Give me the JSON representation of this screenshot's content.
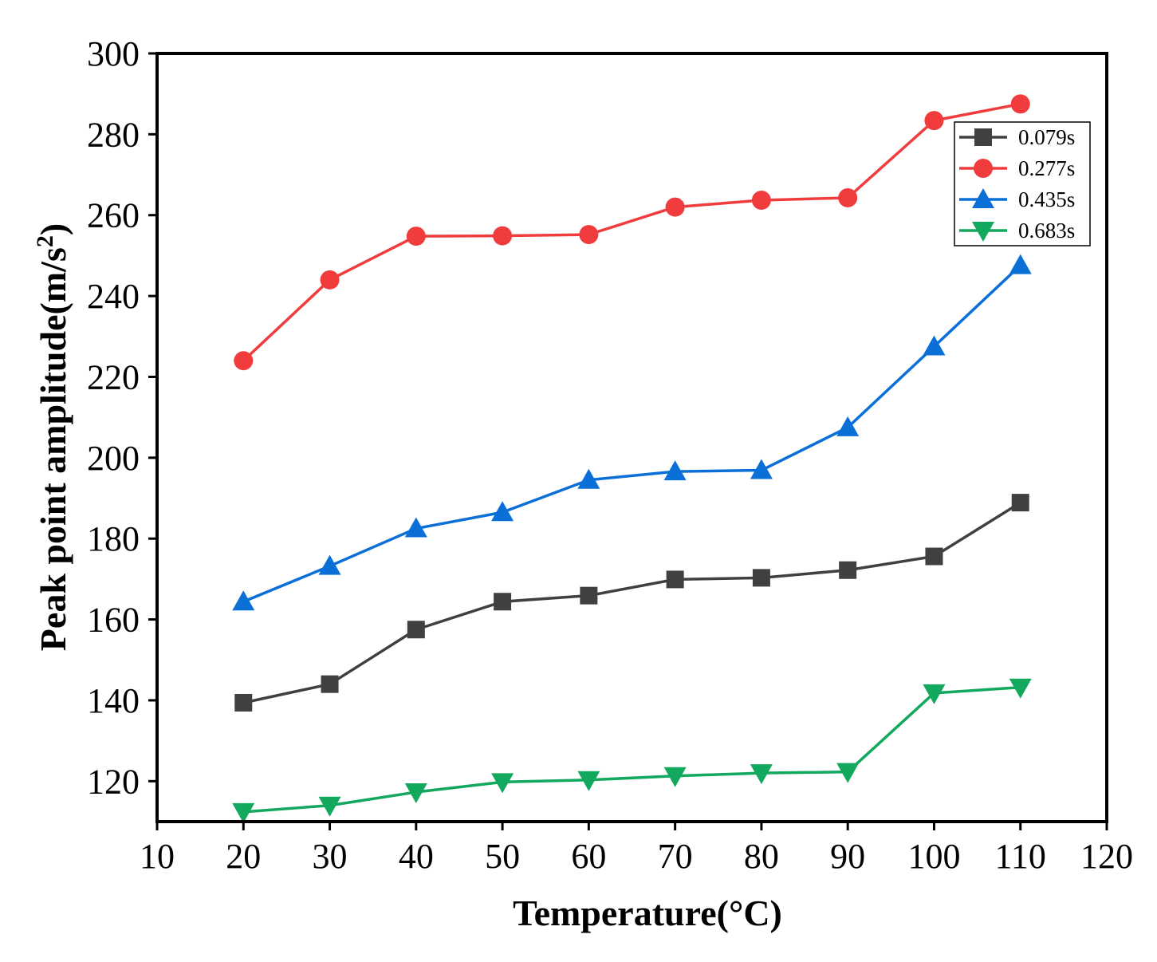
{
  "chart_data": {
    "type": "line",
    "title": "",
    "xlabel": "Temperature(°C)",
    "ylabel": "Peak point amplitude(m/s²)",
    "ylabel_main": "Peak point amplitude(m/s",
    "ylabel_sup": "2",
    "ylabel_end": ")",
    "xlim": [
      10,
      120
    ],
    "ylim": [
      110,
      300
    ],
    "x_ticks": [
      10,
      20,
      30,
      40,
      50,
      60,
      70,
      80,
      90,
      100,
      110,
      120
    ],
    "y_ticks": [
      120,
      140,
      160,
      180,
      200,
      220,
      240,
      260,
      280,
      300
    ],
    "x": [
      20,
      30,
      40,
      50,
      60,
      70,
      80,
      90,
      100,
      110
    ],
    "legend_position": "top-right",
    "series": [
      {
        "name": "0.079s",
        "color": "#404040",
        "marker": "square",
        "values": [
          139.4,
          144.0,
          157.5,
          164.4,
          165.9,
          169.9,
          170.3,
          172.2,
          175.6,
          188.9
        ]
      },
      {
        "name": "0.277s",
        "color": "#f03c3c",
        "marker": "circle",
        "values": [
          224.0,
          244.0,
          254.8,
          254.9,
          255.2,
          262.0,
          263.7,
          264.3,
          283.4,
          287.5
        ]
      },
      {
        "name": "0.435s",
        "color": "#0b6fd8",
        "marker": "triangle-up",
        "values": [
          164.4,
          173.2,
          182.5,
          186.5,
          194.5,
          196.6,
          196.9,
          207.5,
          227.5,
          247.6
        ]
      },
      {
        "name": "0.683s",
        "color": "#12a85e",
        "marker": "triangle-down",
        "values": [
          112.4,
          114.0,
          117.3,
          119.8,
          120.3,
          121.3,
          122.0,
          122.3,
          141.8,
          143.2
        ]
      }
    ]
  }
}
